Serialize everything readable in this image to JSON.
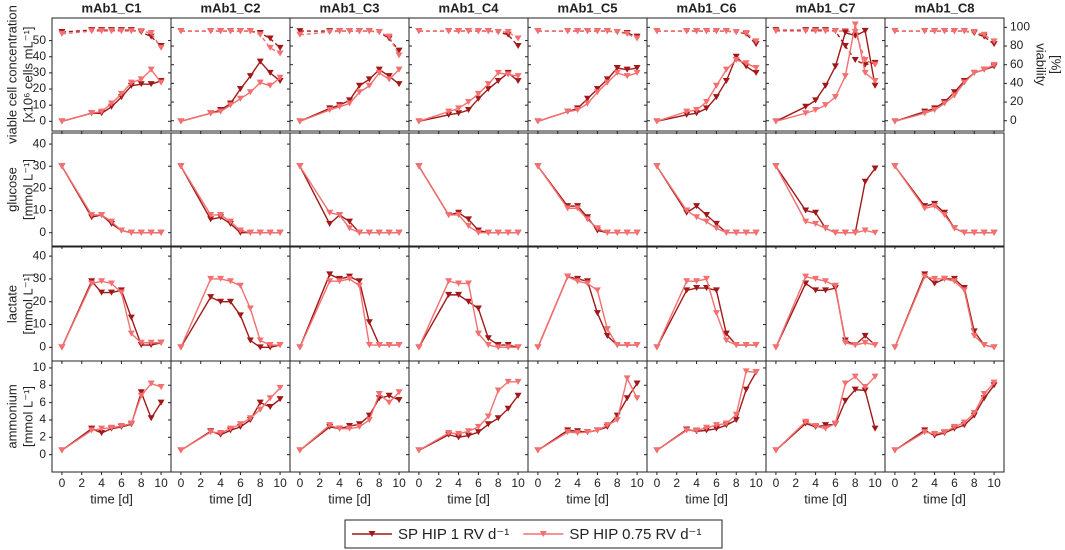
{
  "chart_data": {
    "type": "line",
    "titles": [
      "mAb1_C1",
      "mAb1_C2",
      "mAb1_C3",
      "mAb1_C4",
      "mAb1_C5",
      "mAb1_C6",
      "mAb1_C7",
      "mAb1_C8"
    ],
    "xlabel": "time [d]",
    "xlim": [
      -1,
      11
    ],
    "xticks": [
      0,
      2,
      4,
      6,
      8,
      10
    ],
    "x": [
      0,
      3,
      4,
      5,
      6,
      7,
      8,
      9,
      10
    ],
    "series": [
      {
        "name": "SP HIP 1 RV d⁻¹",
        "color": "#a01818"
      },
      {
        "name": "SP HIP 0.75 RV d⁻¹",
        "color": "#f46f6f"
      }
    ],
    "y2label": [
      "viability",
      "[%]"
    ],
    "y2lim": [
      -11,
      110
    ],
    "y2ticks": [
      0,
      20,
      40,
      60,
      80,
      100
    ],
    "rows": [
      {
        "ylabel": [
          "viable cell concentration",
          "[x10⁶ cells mL⁻¹]"
        ],
        "ylim": [
          -6,
          64
        ],
        "yticks": [
          0,
          10,
          20,
          30,
          40,
          50
        ],
        "values": [
          [
            [
              0,
              5,
              5,
              9,
              15,
              22,
              23,
              23,
              25
            ],
            [
              0,
              5,
              6,
              11,
              17,
              24,
              26,
              32,
              24
            ]
          ],
          [
            [
              0,
              5,
              7,
              11,
              20,
              28,
              37,
              30,
              25
            ],
            [
              0,
              5,
              6,
              10,
              14,
              18,
              24,
              22,
              27
            ]
          ],
          [
            [
              0,
              8,
              10,
              13,
              22,
              26,
              32,
              28,
              23
            ],
            [
              0,
              7,
              9,
              11,
              18,
              22,
              30,
              26,
              32
            ]
          ],
          [
            [
              0,
              4,
              5,
              7,
              14,
              20,
              25,
              30,
              25
            ],
            [
              0,
              6,
              8,
              12,
              17,
              23,
              30,
              29,
              28
            ]
          ],
          [
            [
              0,
              6,
              8,
              14,
              20,
              26,
              33,
              32,
              33
            ],
            [
              0,
              6,
              7,
              11,
              18,
              24,
              30,
              28,
              30
            ]
          ],
          [
            [
              0,
              4,
              5,
              8,
              15,
              25,
              40,
              34,
              30
            ],
            [
              0,
              6,
              7,
              12,
              22,
              32,
              38,
              36,
              33
            ]
          ],
          [
            [
              0,
              9,
              13,
              22,
              34,
              55,
              53,
              56,
              22
            ],
            [
              0,
              5,
              7,
              10,
              15,
              28,
              60,
              30,
              25
            ]
          ],
          [
            [
              0,
              6,
              8,
              12,
              18,
              25,
              30,
              32,
              34
            ],
            [
              0,
              5,
              7,
              11,
              16,
              24,
              30,
              32,
              35
            ]
          ]
        ],
        "y2values": [
          [
            [
              95,
              97,
              97,
              97,
              97,
              97,
              95,
              90,
              80
            ],
            [
              93,
              96,
              96,
              96,
              96,
              96,
              96,
              94,
              78
            ]
          ],
          [
            [
              96,
              96,
              96,
              96,
              96,
              96,
              94,
              88,
              78
            ],
            [
              96,
              96,
              96,
              96,
              96,
              96,
              92,
              78,
              72
            ]
          ],
          [
            [
              96,
              96,
              96,
              96,
              96,
              96,
              95,
              88,
              75
            ],
            [
              92,
              95,
              96,
              96,
              96,
              96,
              95,
              90,
              70
            ]
          ],
          [
            [
              96,
              96,
              96,
              96,
              96,
              96,
              95,
              92,
              80
            ],
            [
              96,
              96,
              96,
              96,
              96,
              96,
              95,
              95,
              88
            ]
          ],
          [
            [
              96,
              96,
              96,
              96,
              96,
              96,
              95,
              94,
              90
            ],
            [
              96,
              96,
              96,
              96,
              96,
              96,
              95,
              93,
              88
            ]
          ],
          [
            [
              96,
              96,
              96,
              96,
              96,
              96,
              95,
              93,
              82
            ],
            [
              96,
              96,
              96,
              96,
              96,
              96,
              95,
              94,
              85
            ]
          ],
          [
            [
              97,
              97,
              97,
              97,
              96,
              80,
              65,
              60,
              62
            ],
            [
              96,
              96,
              96,
              96,
              96,
              96,
              95,
              65,
              60
            ]
          ],
          [
            [
              96,
              96,
              96,
              96,
              96,
              96,
              94,
              90,
              82
            ],
            [
              96,
              96,
              96,
              96,
              96,
              96,
              95,
              92,
              85
            ]
          ]
        ]
      },
      {
        "ylabel": [
          "glucose",
          "[mmol L⁻¹]"
        ],
        "ylim": [
          -6,
          45
        ],
        "yticks": [
          0,
          10,
          20,
          30,
          40
        ],
        "values": [
          [
            [
              30,
              7,
              8,
              4,
              1,
              0,
              0,
              0,
              0
            ],
            [
              30,
              8,
              8,
              5,
              1,
              0,
              0,
              0,
              0
            ]
          ],
          [
            [
              30,
              6,
              7,
              4,
              0,
              0,
              0,
              0,
              0
            ],
            [
              30,
              8,
              8,
              5,
              1,
              0,
              0,
              0,
              0
            ]
          ],
          [
            [
              30,
              4,
              8,
              5,
              0,
              0,
              0,
              0,
              0
            ],
            [
              30,
              9,
              8,
              2,
              0,
              0,
              0,
              0,
              0
            ]
          ],
          [
            [
              30,
              8,
              9,
              6,
              1,
              0,
              0,
              0,
              0
            ],
            [
              30,
              8,
              8,
              3,
              0,
              0,
              0,
              0,
              0
            ]
          ],
          [
            [
              30,
              12,
              12,
              7,
              1,
              0,
              0,
              0,
              0
            ],
            [
              30,
              11,
              11,
              6,
              2,
              0,
              0,
              0,
              0
            ]
          ],
          [
            [
              30,
              9,
              12,
              8,
              4,
              0,
              0,
              0,
              0
            ],
            [
              30,
              10,
              7,
              5,
              2,
              0,
              0,
              0,
              0
            ]
          ],
          [
            [
              30,
              10,
              9,
              2,
              0,
              0,
              0,
              23,
              29
            ],
            [
              30,
              5,
              4,
              2,
              0,
              0,
              0,
              1,
              0
            ]
          ],
          [
            [
              30,
              12,
              13,
              9,
              2,
              0,
              0,
              0,
              0
            ],
            [
              30,
              11,
              12,
              8,
              2,
              0,
              0,
              0,
              0
            ]
          ]
        ]
      },
      {
        "ylabel": [
          "lactate",
          "[mmol L⁻¹]"
        ],
        "ylim": [
          -6,
          44
        ],
        "yticks": [
          0,
          10,
          20,
          30,
          40
        ],
        "values": [
          [
            [
              0,
              29,
              24,
              24,
              25,
              13,
              1,
              1,
              2
            ],
            [
              0,
              28,
              29,
              28,
              24,
              6,
              2,
              2,
              2
            ]
          ],
          [
            [
              0,
              22,
              20,
              20,
              14,
              3,
              0,
              0,
              1
            ],
            [
              0,
              30,
              30,
              29,
              27,
              17,
              3,
              1,
              1
            ]
          ],
          [
            [
              0,
              32,
              30,
              31,
              29,
              11,
              1,
              1,
              1
            ],
            [
              0,
              29,
              29,
              30,
              27,
              1,
              1,
              1,
              1
            ]
          ],
          [
            [
              0,
              23,
              23,
              20,
              17,
              4,
              1,
              1,
              0
            ],
            [
              0,
              29,
              28,
              28,
              6,
              1,
              0,
              0,
              0
            ]
          ],
          [
            [
              0,
              31,
              30,
              29,
              15,
              5,
              1,
              1,
              1
            ],
            [
              0,
              31,
              29,
              28,
              25,
              8,
              1,
              1,
              1
            ]
          ],
          [
            [
              0,
              25,
              26,
              26,
              25,
              6,
              1,
              1,
              1
            ],
            [
              0,
              29,
              29,
              30,
              15,
              3,
              1,
              1,
              1
            ]
          ],
          [
            [
              0,
              28,
              25,
              25,
              26,
              3,
              1,
              5,
              1
            ],
            [
              0,
              31,
              30,
              29,
              27,
              2,
              1,
              2,
              1
            ]
          ],
          [
            [
              0,
              32,
              28,
              30,
              30,
              26,
              7,
              1,
              0
            ],
            [
              0,
              31,
              30,
              30,
              29,
              25,
              5,
              1,
              0
            ]
          ]
        ]
      },
      {
        "ylabel": [
          "ammonium",
          "[mmol L⁻¹]"
        ],
        "ylim": [
          -2,
          10.8
        ],
        "yticks": [
          0,
          2,
          4,
          6,
          8,
          10
        ],
        "values": [
          [
            [
              0.5,
              3,
              2.5,
              3,
              3.2,
              3.5,
              7.2,
              4.2,
              6
            ],
            [
              0.5,
              2.8,
              3,
              3.1,
              3.3,
              3.6,
              6.8,
              8.2,
              7.8
            ]
          ],
          [
            [
              0.5,
              2.7,
              2.3,
              2.8,
              3.2,
              4,
              6,
              5.5,
              6.4
            ],
            [
              0.5,
              2.6,
              2.5,
              3,
              3.5,
              4.2,
              5.2,
              6.5,
              7.7
            ]
          ],
          [
            [
              0.5,
              3.2,
              3,
              3.3,
              3.5,
              4.5,
              6.5,
              6.8,
              6.3
            ],
            [
              0.5,
              3.4,
              3,
              3,
              3.2,
              4,
              7,
              6,
              7.2
            ]
          ],
          [
            [
              0.5,
              2.3,
              2,
              2.2,
              2.6,
              3.5,
              4.2,
              5.3,
              6.8
            ],
            [
              0.5,
              2.5,
              2.4,
              2.7,
              3.2,
              4.4,
              7.4,
              8.4,
              8.4
            ]
          ],
          [
            [
              0.5,
              2.8,
              2.7,
              2.6,
              2.8,
              3.2,
              4.5,
              6.5,
              8.2
            ],
            [
              0.5,
              2.6,
              2.5,
              2.6,
              2.8,
              3.4,
              4,
              8.8,
              6.5
            ]
          ],
          [
            [
              0.5,
              2.9,
              2.7,
              2.8,
              3,
              3.4,
              4,
              7.5,
              9.5
            ],
            [
              0.5,
              2.8,
              2.8,
              3.1,
              3.4,
              3.6,
              4.6,
              9.6,
              9.5
            ]
          ],
          [
            [
              0.5,
              3.6,
              3.2,
              3.4,
              3.5,
              6.2,
              7.5,
              7.4,
              3
            ],
            [
              0.5,
              3.8,
              3.3,
              3,
              3.6,
              8.2,
              9,
              7.8,
              9
            ]
          ],
          [
            [
              0.5,
              2.8,
              2.2,
              2.5,
              3,
              3.4,
              4.5,
              6.5,
              8
            ],
            [
              0.5,
              2.6,
              2.4,
              2.6,
              3.2,
              3.7,
              4.8,
              7,
              8.3
            ]
          ]
        ]
      }
    ]
  }
}
